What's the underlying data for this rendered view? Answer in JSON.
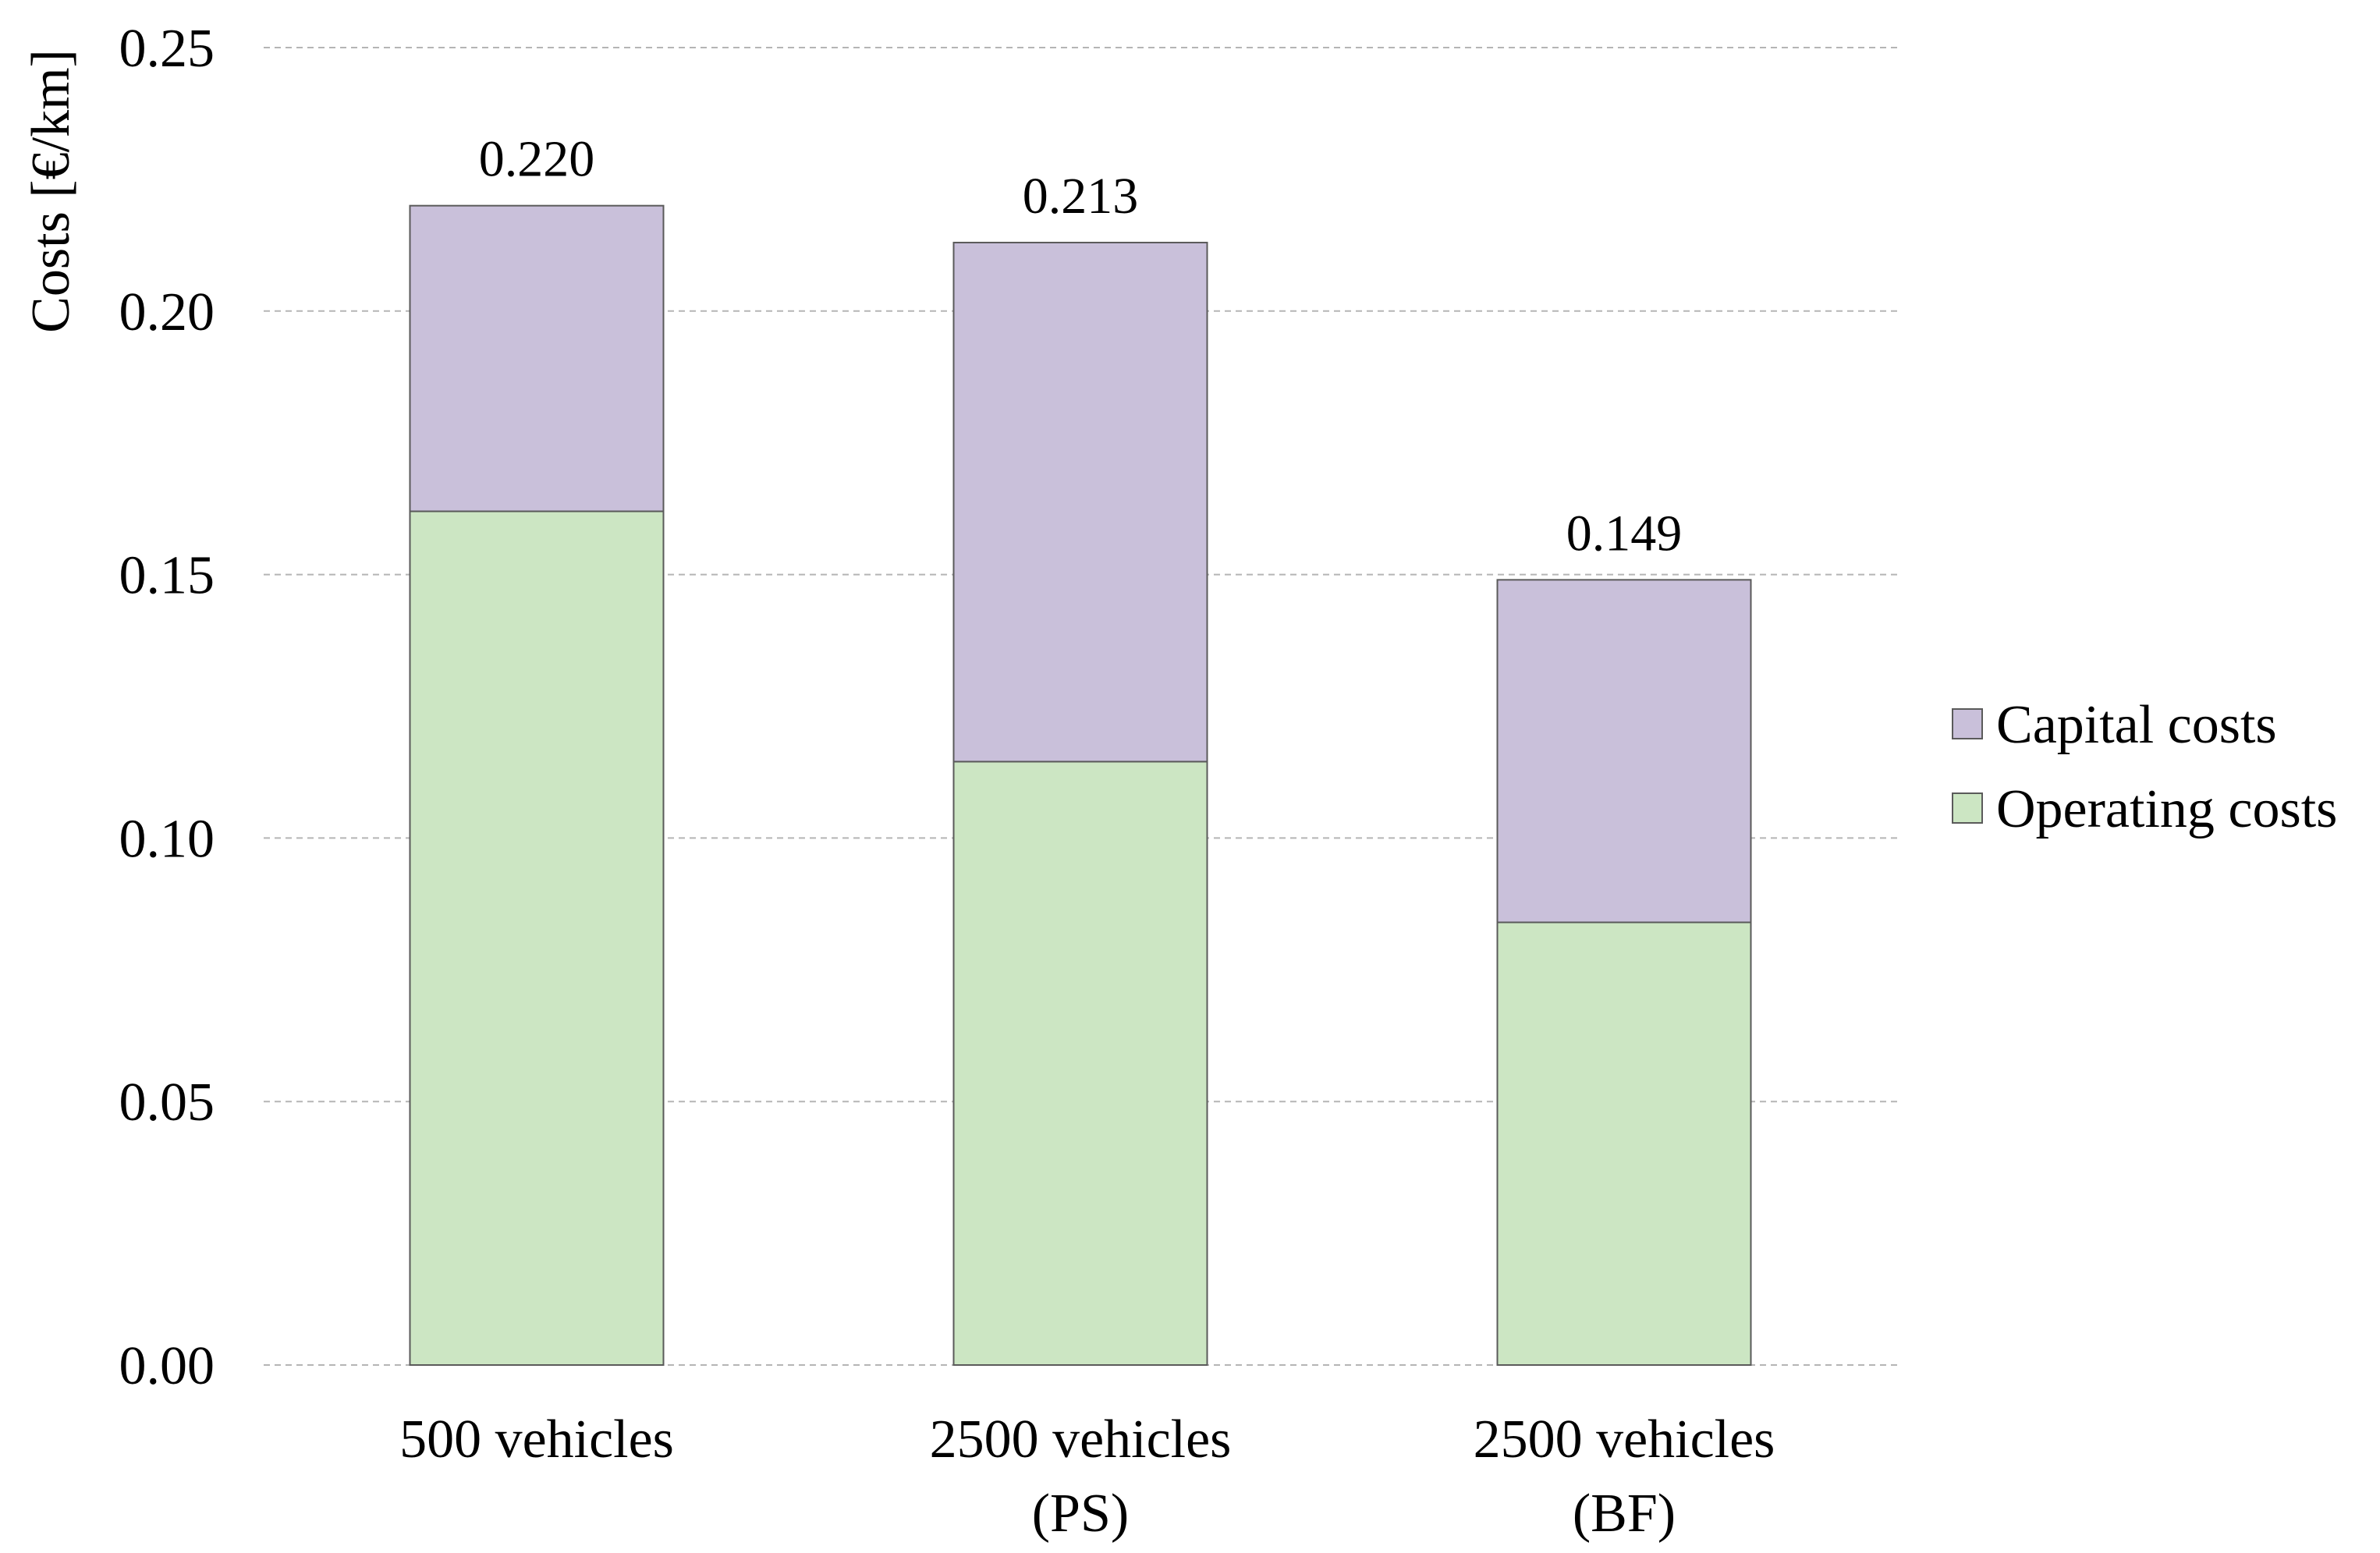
{
  "chart_data": {
    "type": "bar",
    "stacked": true,
    "title": "",
    "xlabel": "",
    "ylabel": "Costs [€/km]",
    "ylim": [
      0,
      0.25
    ],
    "yticks": [
      "0.00",
      "0.05",
      "0.10",
      "0.15",
      "0.20",
      "0.25"
    ],
    "grid": true,
    "legend_position": "right",
    "categories": [
      [
        "500 vehicles"
      ],
      [
        "2500 vehicles",
        "(PS)"
      ],
      [
        "2500 vehicles",
        "(BF)"
      ]
    ],
    "series": [
      {
        "name": "Operating costs",
        "color": "#cce6c3",
        "values": [
          0.162,
          0.1145,
          0.084
        ]
      },
      {
        "name": "Capital costs",
        "color": "#c9c0da",
        "values": [
          0.058,
          0.0985,
          0.065
        ]
      }
    ],
    "totals": [
      "0.220",
      "0.213",
      "0.149"
    ],
    "legend_order": [
      "Capital costs",
      "Operating costs"
    ],
    "colors": {
      "grid": "#b5b5b5",
      "bar_border": "#5a5a5a",
      "text": "#000000"
    }
  }
}
